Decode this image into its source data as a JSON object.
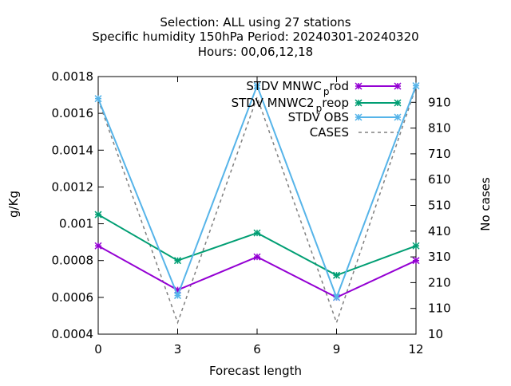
{
  "chart_data": {
    "type": "line",
    "title_lines": [
      "Selection: ALL using    27 stations",
      "Specific humidity 150hPa   Period: 20240301-20240320",
      "Hours:  00,06,12,18"
    ],
    "xlabel": "Forecast length",
    "ylabel": "g/Kg",
    "y2label": "No cases",
    "x": [
      0,
      3,
      6,
      9,
      12
    ],
    "xlim": [
      0,
      12
    ],
    "ylim": [
      0.0004,
      0.0018
    ],
    "y2lim": [
      10,
      1010
    ],
    "x_ticks": [
      "0",
      "3",
      "6",
      "9",
      "12"
    ],
    "y_ticks": [
      "0.0004",
      "0.0006",
      "0.0008",
      "0.001",
      "0.0012",
      "0.0014",
      "0.0016",
      "0.0018"
    ],
    "y2_ticks": [
      "10",
      "110",
      "210",
      "310",
      "410",
      "510",
      "610",
      "710",
      "810",
      "910"
    ],
    "legend_position": "top-right",
    "grid": false,
    "series": [
      {
        "name": "STDV MNWC_prod",
        "legend_main": "STDV MNWC",
        "legend_sub": "p",
        "legend_tail": "rod",
        "color": "#9400d3",
        "axis": "y",
        "marker": "star",
        "values": [
          0.00088,
          0.00064,
          0.00082,
          0.0006,
          0.0008
        ]
      },
      {
        "name": "STDV MNWC2_preop",
        "legend_main": "STDV MNWC2",
        "legend_sub": "p",
        "legend_tail": "reop",
        "color": "#009e73",
        "axis": "y",
        "marker": "star",
        "values": [
          0.00105,
          0.0008,
          0.00095,
          0.00072,
          0.00088
        ]
      },
      {
        "name": "STDV OBS",
        "legend_main": "STDV OBS",
        "legend_sub": "",
        "legend_tail": "",
        "color": "#56b4e9",
        "axis": "y",
        "marker": "star",
        "values": [
          0.00168,
          0.00061,
          0.00175,
          0.0006,
          0.00175
        ]
      },
      {
        "name": "CASES",
        "legend_main": "CASES",
        "legend_sub": "",
        "legend_tail": "",
        "color": "#808080",
        "axis": "y2",
        "marker": "none",
        "dashed": true,
        "values": [
          920,
          55,
          930,
          55,
          970
        ]
      }
    ]
  }
}
